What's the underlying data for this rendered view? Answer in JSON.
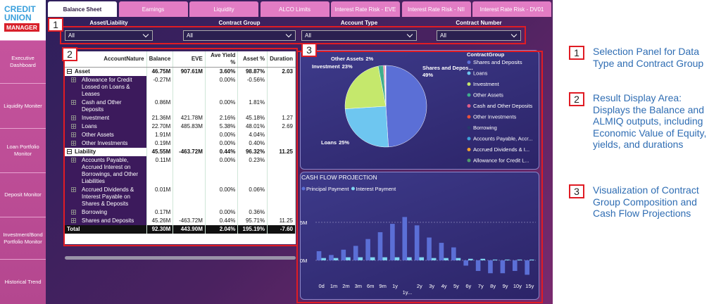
{
  "sidebar": {
    "logo": {
      "line1": "CREDIT",
      "line2": "UNION",
      "line3": "MANAGER"
    },
    "items": [
      "Executive Dashboard",
      "Liquidity Moniter",
      "Loan Portfolio Monitor",
      "Deposit Monitor",
      "Investment/Bond Portfolio Monitor",
      "Historical Trend"
    ]
  },
  "tabs": [
    "Balance Sheet",
    "Earnings",
    "Liquidity",
    "ALCO Limits",
    "Interest Rate Risk - EVE",
    "Interest Rate Risk - NII",
    "Interest Rate Risk - DV01"
  ],
  "filters": [
    {
      "label": "Asset/Liability",
      "value": "All"
    },
    {
      "label": "Contract Group",
      "value": "All"
    },
    {
      "label": "Account Type",
      "value": "All"
    },
    {
      "label": "Contract Number",
      "value": "All"
    }
  ],
  "table": {
    "columns": [
      "AccountNature",
      "Balance",
      "EVE",
      "Ave Yield %",
      "Asset %",
      "Duration"
    ],
    "groups": [
      {
        "name": "Asset",
        "cells": [
          "46.75M",
          "907.61M",
          "3.60%",
          "98.87%",
          "2.03"
        ],
        "children": [
          {
            "name": "Allowance for Credit Lossed on Loans & Leases",
            "cells": [
              "-0.27M",
              null,
              "0.00%",
              "-0.56%",
              null
            ]
          },
          {
            "name": "Cash and Other Deposits",
            "cells": [
              "0.86M",
              null,
              "0.00%",
              "1.81%",
              null
            ]
          },
          {
            "name": "Investment",
            "cells": [
              "21.36M",
              "421.78M",
              "2.16%",
              "45.18%",
              "1.27"
            ]
          },
          {
            "name": "Loans",
            "cells": [
              "22.70M",
              "485.83M",
              "5.38%",
              "48.01%",
              "2.69"
            ]
          },
          {
            "name": "Other Assets",
            "cells": [
              "1.91M",
              null,
              "0.00%",
              "4.04%",
              null
            ]
          },
          {
            "name": "Other Investments",
            "cells": [
              "0.19M",
              null,
              "0.00%",
              "0.40%",
              null
            ]
          }
        ]
      },
      {
        "name": "Liability",
        "cells": [
          "45.55M",
          "-463.72M",
          "0.44%",
          "96.32%",
          "11.25"
        ],
        "children": [
          {
            "name": "Accounts Payable, Accrued Interest on Borrowings, and Other Liabilities",
            "cells": [
              "0.11M",
              null,
              "0.00%",
              "0.23%",
              null
            ]
          },
          {
            "name": "Accrued Dividends & Interest Payable on Shares & Deposits",
            "cells": [
              "0.01M",
              null,
              "0.00%",
              "0.06%",
              null
            ]
          },
          {
            "name": "Borrowing",
            "cells": [
              "0.17M",
              null,
              "0.00%",
              "0.36%",
              null
            ]
          },
          {
            "name": "Shares and Deposits",
            "cells": [
              "45.26M",
              "-463.72M",
              "0.44%",
              "95.71%",
              "11.25"
            ]
          }
        ]
      }
    ],
    "total": {
      "name": "Total",
      "cells": [
        "92.30M",
        "443.90M",
        "2.04%",
        "195.19%",
        "-7.60"
      ]
    }
  },
  "chart_data": [
    {
      "type": "pie",
      "legend_title": "ContractGroup",
      "categories": [
        "Shares and Deposits",
        "Loans",
        "Investment",
        "Other Assets",
        "Cash and Other Deposits",
        "Other Investments",
        "Borrowing",
        "Accounts Payable, Accr...",
        "Accrued Dividends & I...",
        "Allowance for Credit L..."
      ],
      "values": [
        49,
        25,
        23,
        2,
        0.5,
        0.2,
        0.1,
        0.1,
        0.05,
        0.05
      ],
      "label_names": [
        "Shares and Depos...",
        "Loans",
        "Investment",
        "Other Assets",
        null,
        null,
        null,
        null,
        null,
        null
      ],
      "value_labels": [
        "49%",
        "25%",
        "23%",
        "2%",
        null,
        null,
        null,
        null,
        null,
        null
      ],
      "colors": [
        "#5b6fd6",
        "#6ec6f0",
        "#c5e86c",
        "#3fae8e",
        "#e05c8a",
        "#e8503c",
        "#263a6a",
        "#3f9fd8",
        "#f0a030",
        "#4f9c6c"
      ]
    },
    {
      "type": "bar",
      "title": "CASH FLOW PROJECTION",
      "categories": [
        "0d",
        "1m",
        "2m",
        "3m",
        "6m",
        "9m",
        "1y",
        "1y...",
        "2y",
        "3y",
        "4y",
        "5y",
        "6y",
        "7y",
        "8y",
        "9y",
        "10y",
        "15y"
      ],
      "series": [
        {
          "name": "Principal Payment",
          "color": "#5b6fd6",
          "values": [
            1.2,
            0.7,
            1.4,
            1.9,
            2.8,
            3.7,
            4.8,
            5.7,
            4.6,
            3.0,
            2.3,
            1.7,
            -0.7,
            -1.4,
            -1.7,
            -1.7,
            -1.4,
            -1.9
          ]
        },
        {
          "name": "Interest Payment",
          "color": "#7fd6f2",
          "values": [
            0.3,
            0.3,
            0.4,
            0.4,
            0.4,
            0.4,
            0.4,
            0.4,
            0.4,
            0.3,
            0.3,
            0.3,
            0.2,
            0.2,
            0.1,
            0.1,
            0.1,
            0.1
          ]
        }
      ],
      "ylim": [
        -2.6,
        7.4
      ],
      "yticks": [
        {
          "value": 0,
          "label": "0M"
        },
        {
          "value": 5,
          "label": "5M"
        }
      ],
      "grid": true
    }
  ],
  "callouts": [
    {
      "number": "1",
      "text": "Selection Panel for Data Type and Contract Group"
    },
    {
      "number": "2",
      "text": "Result Display Area: Displays the Balance and ALMIQ outputs, including Economic Value of Equity, yields, and durations"
    },
    {
      "number": "3",
      "text": "Visualization of Contract Group Composition and Cash Flow Projections"
    }
  ]
}
